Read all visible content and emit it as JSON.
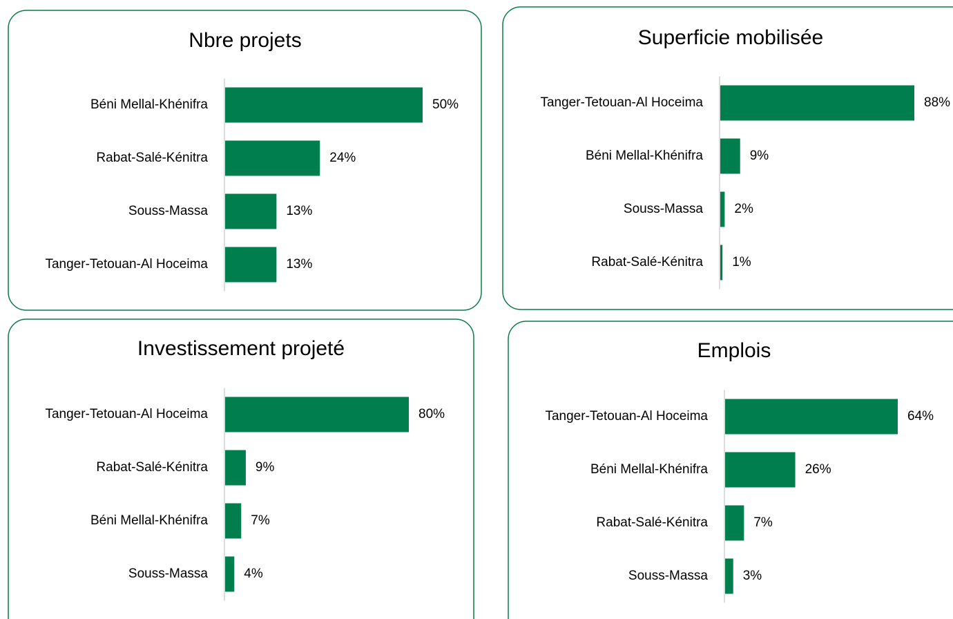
{
  "chart_data": [
    {
      "type": "bar",
      "orientation": "horizontal",
      "title": "Nbre projets",
      "color": "#007e4e",
      "categories": [
        "Béni Mellal-Khénifra",
        "Rabat-Salé-Kénitra",
        "Souss-Massa",
        "Tanger-Tetouan-Al Hoceima"
      ],
      "values": [
        50,
        24,
        13,
        13
      ],
      "value_labels": [
        "50%",
        "24%",
        "13%",
        "13%"
      ]
    },
    {
      "type": "bar",
      "orientation": "horizontal",
      "title": "Superficie mobilisée",
      "color": "#007e4e",
      "categories": [
        "Tanger-Tetouan-Al Hoceima",
        "Béni Mellal-Khénifra",
        "Souss-Massa",
        "Rabat-Salé-Kénitra"
      ],
      "values": [
        88,
        9,
        2,
        1
      ],
      "value_labels": [
        "88%",
        "9%",
        "2%",
        "1%"
      ]
    },
    {
      "type": "bar",
      "orientation": "horizontal",
      "title": "Investissement projeté",
      "color": "#007e4e",
      "categories": [
        "Tanger-Tetouan-Al Hoceima",
        "Rabat-Salé-Kénitra",
        "Béni Mellal-Khénifra",
        "Souss-Massa"
      ],
      "values": [
        80,
        9,
        7,
        4
      ],
      "value_labels": [
        "80%",
        "9%",
        "7%",
        "4%"
      ]
    },
    {
      "type": "bar",
      "orientation": "horizontal",
      "title": "Emplois",
      "color": "#007e4e",
      "categories": [
        "Tanger-Tetouan-Al Hoceima",
        "Béni Mellal-Khénifra",
        "Rabat-Salé-Kénitra",
        "Souss-Massa"
      ],
      "values": [
        64,
        26,
        7,
        3
      ],
      "value_labels": [
        "64%",
        "26%",
        "7%",
        "3%"
      ]
    }
  ]
}
